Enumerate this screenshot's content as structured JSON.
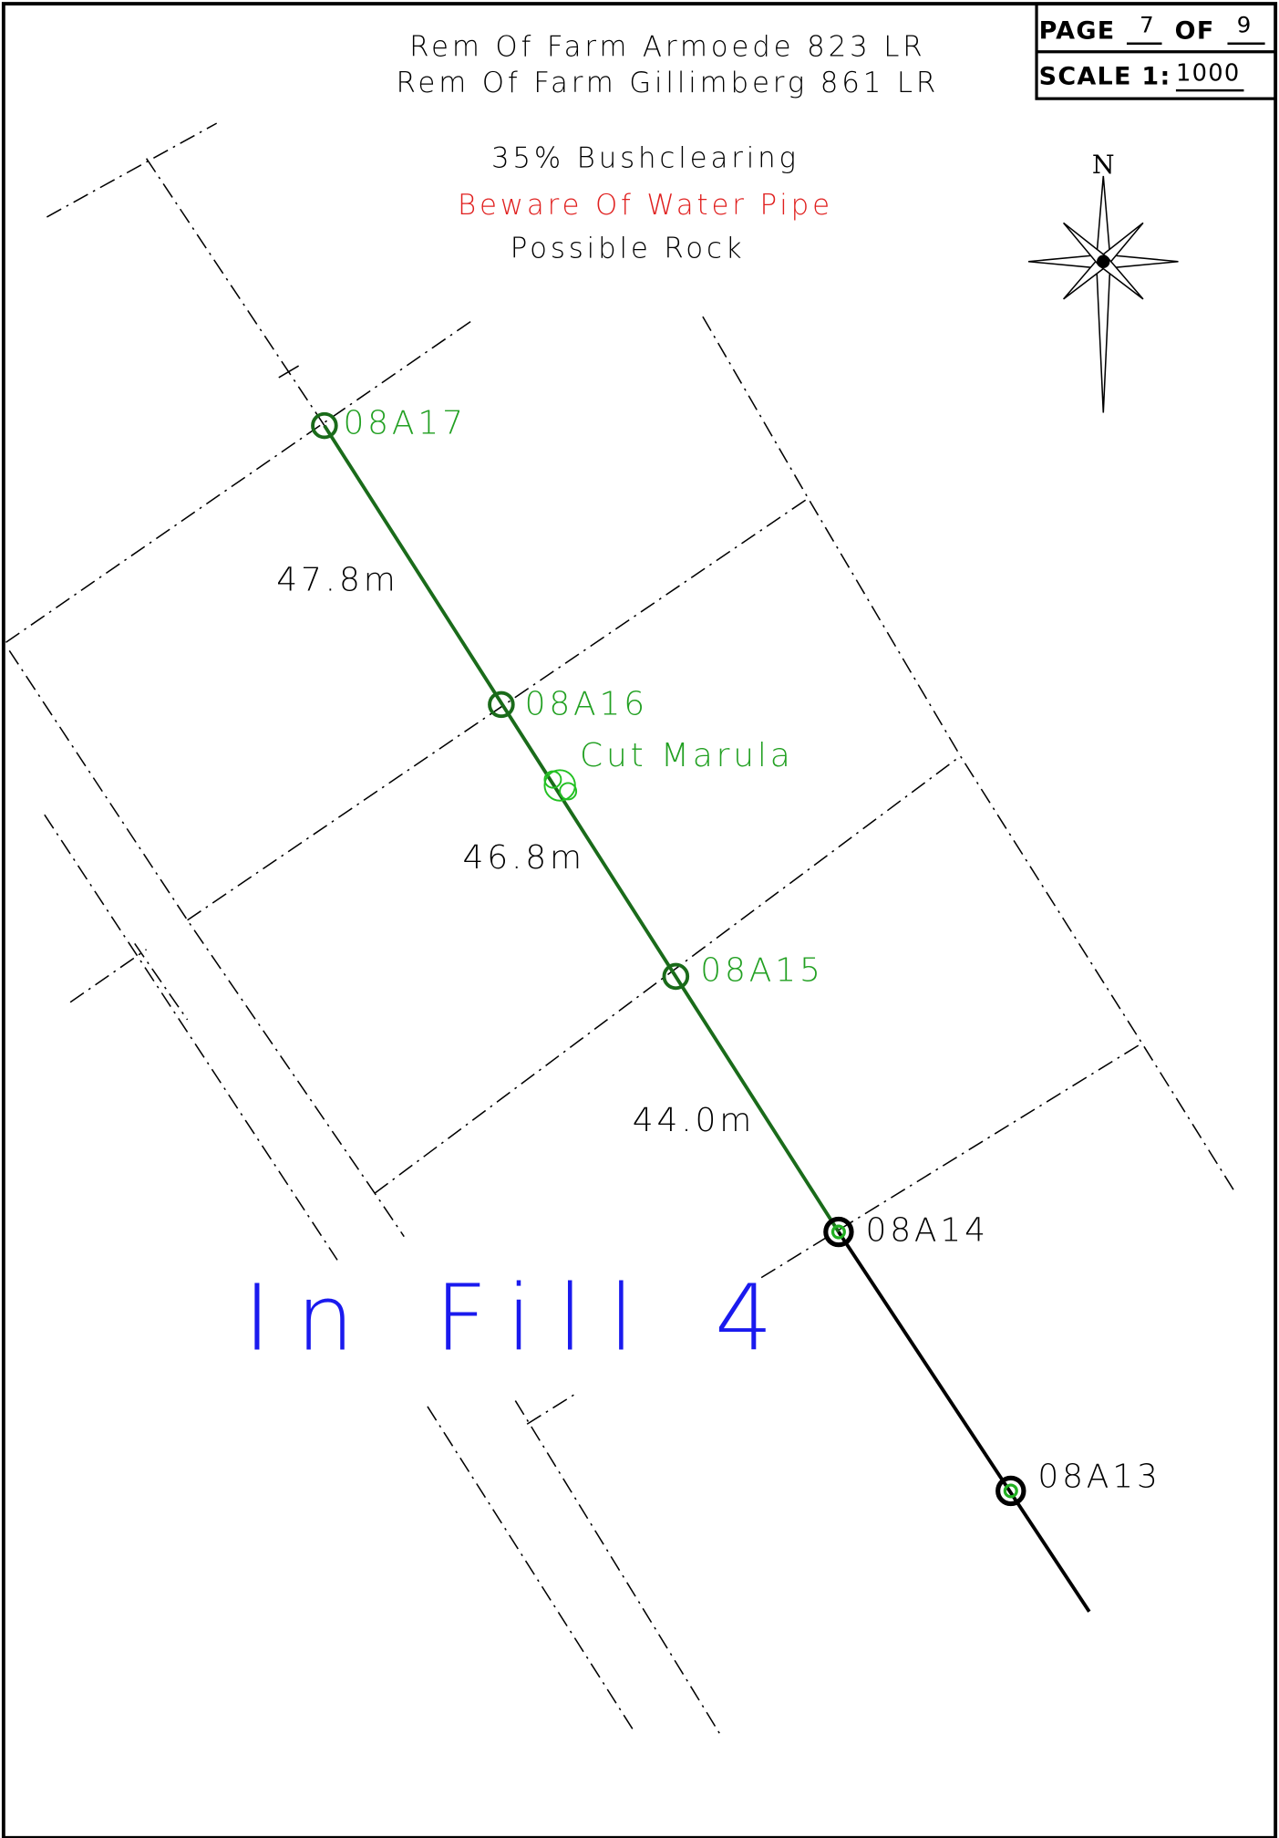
{
  "header": {
    "lines": [
      "Rem Of Farm Armoede 823 LR",
      "Rem Of Farm Gillimberg 861 LR"
    ],
    "notes": [
      "35% Bushclearing",
      "Beware Of Water Pipe",
      "Possible Rock"
    ]
  },
  "sheet": {
    "page_label": "PAGE",
    "page": "7",
    "of_label": "OF",
    "total": "9",
    "scale_label": "SCALE 1:",
    "scale": "1000"
  },
  "north": "N",
  "points": [
    "08A17",
    "08A16",
    "08A15",
    "08A14",
    "08A13"
  ],
  "distances": [
    "47.8m",
    "46.8m",
    "44.0m"
  ],
  "feature": "Cut Marula",
  "area": "In Fill 4"
}
